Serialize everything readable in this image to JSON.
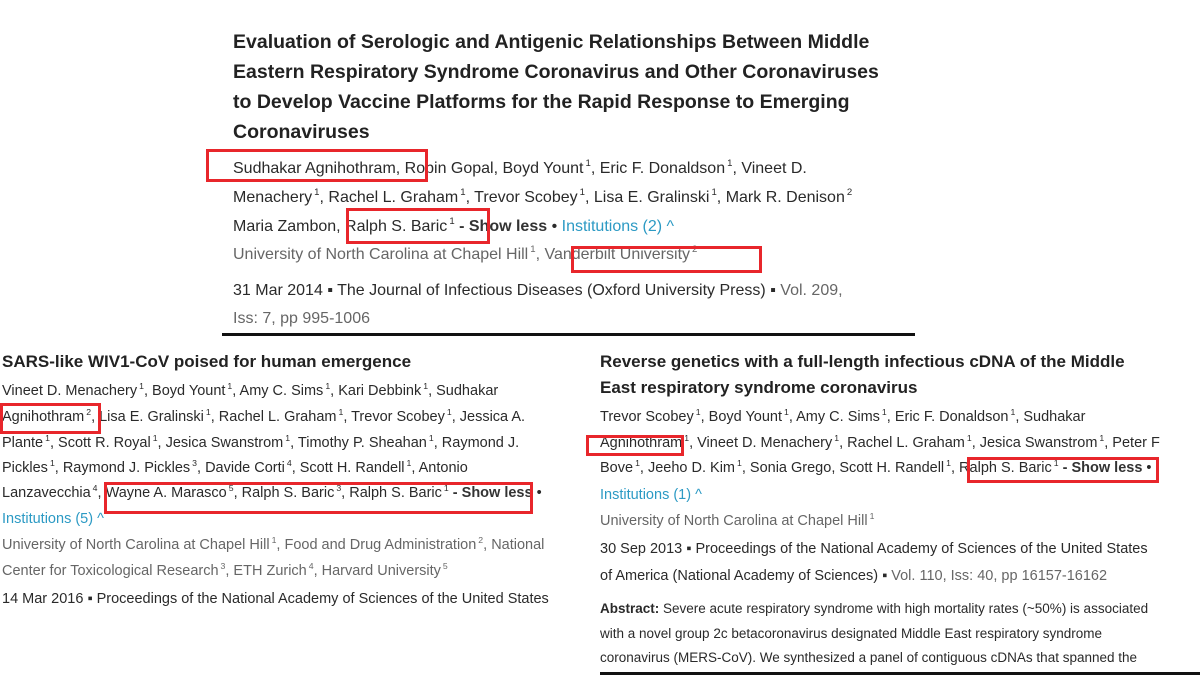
{
  "highlight_color": "#e8262b",
  "link_color": "#2c9ac4",
  "papers": [
    {
      "lines": [
        {
          "cls": "tA",
          "segs": [
            {
              "t": "Evaluation of Serologic and Antigenic Relationships Between Middle"
            }
          ]
        },
        {
          "cls": "tA",
          "segs": [
            {
              "t": "Eastern Respiratory Syndrome Coronavirus and Other Coronaviruses"
            }
          ]
        },
        {
          "cls": "tA",
          "segs": [
            {
              "t": "to Develop Vaccine Platforms for the Rapid Response to Emerging"
            }
          ]
        },
        {
          "cls": "tA",
          "segs": [
            {
              "t": "Coronaviruses"
            }
          ]
        },
        {
          "cls": "pa",
          "segs": [
            {
              "t": "Sudhakar Agnihothram, Robin Gopal, Boyd Yount"
            },
            {
              "s": "1"
            },
            {
              "t": ", Eric F. Donaldson"
            },
            {
              "s": "1"
            },
            {
              "t": ", Vineet D."
            }
          ]
        },
        {
          "cls": "pa",
          "segs": [
            {
              "t": "Menachery"
            },
            {
              "s": "1"
            },
            {
              "t": ", Rachel L. Graham"
            },
            {
              "s": "1"
            },
            {
              "t": ", Trevor Scobey"
            },
            {
              "s": "1"
            },
            {
              "t": ", Lisa E. Gralinski"
            },
            {
              "s": "1"
            },
            {
              "t": ", Mark R. Denison"
            },
            {
              "s": "2"
            }
          ]
        },
        {
          "cls": "pa",
          "segs": [
            {
              "t": "Maria Zambon, Ralph S. Baric"
            },
            {
              "s": "1"
            },
            {
              "b": "  - Show less"
            },
            {
              "t": " • "
            },
            {
              "l": "Institutions (2) ^"
            }
          ]
        },
        {
          "cls": "pa inst",
          "segs": [
            {
              "t": "University of North Carolina at Chapel Hill"
            },
            {
              "s": "1"
            },
            {
              "t": ", Vanderbilt University"
            },
            {
              "s": "2"
            }
          ]
        },
        {
          "cls": "pa",
          "segs": [
            {
              "t": "31 Mar 2014 ▪ The Journal of Infectious Diseases (Oxford University Press) ▪ "
            },
            {
              "g": "Vol. 209,"
            }
          ]
        },
        {
          "cls": "pa",
          "segs": [
            {
              "g": "Iss: 7, pp 995-1006"
            }
          ]
        }
      ]
    },
    {
      "lines": [
        {
          "cls": "tB",
          "segs": [
            {
              "t": "SARS-like WIV1-CoV poised for human emergence"
            }
          ]
        },
        {
          "cls": "pb",
          "segs": [
            {
              "t": "Vineet D. Menachery"
            },
            {
              "s": "1"
            },
            {
              "t": ", Boyd Yount"
            },
            {
              "s": "1"
            },
            {
              "t": ", Amy C. Sims"
            },
            {
              "s": "1"
            },
            {
              "t": ", Kari Debbink"
            },
            {
              "s": "1"
            },
            {
              "t": ", Sudhakar"
            }
          ]
        },
        {
          "cls": "pb",
          "segs": [
            {
              "t": "Agnihothram"
            },
            {
              "s": "2"
            },
            {
              "t": ", Lisa E. Gralinski"
            },
            {
              "s": "1"
            },
            {
              "t": ", Rachel L. Graham"
            },
            {
              "s": "1"
            },
            {
              "t": ", Trevor Scobey"
            },
            {
              "s": "1"
            },
            {
              "t": ", Jessica A."
            }
          ]
        },
        {
          "cls": "pb",
          "segs": [
            {
              "t": "Plante"
            },
            {
              "s": "1"
            },
            {
              "t": ", Scott R. Royal"
            },
            {
              "s": "1"
            },
            {
              "t": ", Jesica Swanstrom"
            },
            {
              "s": "1"
            },
            {
              "t": ", Timothy P. Sheahan"
            },
            {
              "s": "1"
            },
            {
              "t": ", Raymond J."
            }
          ]
        },
        {
          "cls": "pb",
          "segs": [
            {
              "t": "Pickles"
            },
            {
              "s": "1"
            },
            {
              "t": ", Raymond J. Pickles"
            },
            {
              "s": "3"
            },
            {
              "t": ", Davide Corti"
            },
            {
              "s": "4"
            },
            {
              "t": ", Scott H. Randell"
            },
            {
              "s": "1"
            },
            {
              "t": ", Antonio"
            }
          ]
        },
        {
          "cls": "pb",
          "segs": [
            {
              "t": "Lanzavecchia"
            },
            {
              "s": "4"
            },
            {
              "t": ", Wayne A. Marasco"
            },
            {
              "s": "5"
            },
            {
              "t": ", Ralph S. Baric"
            },
            {
              "s": "3"
            },
            {
              "t": ", Ralph S. Baric"
            },
            {
              "s": "1"
            },
            {
              "b": "  - Show less"
            },
            {
              "t": " •"
            }
          ]
        },
        {
          "cls": "pb",
          "segs": [
            {
              "l": "Institutions (5) ^"
            }
          ]
        },
        {
          "cls": "pb inst",
          "segs": [
            {
              "t": "University of North Carolina at Chapel Hill"
            },
            {
              "s": "1"
            },
            {
              "t": ", Food and Drug Administration"
            },
            {
              "s": "2"
            },
            {
              "t": ", National"
            }
          ]
        },
        {
          "cls": "pb inst",
          "segs": [
            {
              "t": "Center for Toxicological Research"
            },
            {
              "s": "3"
            },
            {
              "t": ", ETH Zurich"
            },
            {
              "s": "4"
            },
            {
              "t": ", Harvard University"
            },
            {
              "s": "5"
            }
          ]
        },
        {
          "cls": "pb",
          "segs": [
            {
              "t": "14 Mar 2016 ▪ Proceedings of the National Academy of Sciences of the United States"
            }
          ]
        }
      ]
    },
    {
      "lines": [
        {
          "cls": "tB",
          "segs": [
            {
              "t": "Reverse genetics with a full-length infectious cDNA of the Middle"
            }
          ]
        },
        {
          "cls": "tB",
          "segs": [
            {
              "t": "East respiratory syndrome coronavirus"
            }
          ]
        },
        {
          "cls": "pb",
          "segs": [
            {
              "t": "Trevor Scobey"
            },
            {
              "s": "1"
            },
            {
              "t": ", Boyd Yount"
            },
            {
              "s": "1"
            },
            {
              "t": ", Amy C. Sims"
            },
            {
              "s": "1"
            },
            {
              "t": ", Eric F. Donaldson"
            },
            {
              "s": "1"
            },
            {
              "t": ", Sudhakar"
            }
          ]
        },
        {
          "cls": "pb",
          "segs": [
            {
              "t": "Agnihothram"
            },
            {
              "s": "1"
            },
            {
              "t": ", Vineet D. Menachery"
            },
            {
              "s": "1"
            },
            {
              "t": ", Rachel L. Graham"
            },
            {
              "s": "1"
            },
            {
              "t": ", Jesica Swanstrom"
            },
            {
              "s": "1"
            },
            {
              "t": ", Peter F"
            }
          ]
        },
        {
          "cls": "pb",
          "segs": [
            {
              "t": "Bove"
            },
            {
              "s": "1"
            },
            {
              "t": ", Jeeho D. Kim"
            },
            {
              "s": "1"
            },
            {
              "t": ", Sonia Grego, Scott H. Randell"
            },
            {
              "s": "1"
            },
            {
              "t": ", Ralph S. Baric"
            },
            {
              "s": "1"
            },
            {
              "b": "  - Show less"
            },
            {
              "t": " •"
            }
          ]
        },
        {
          "cls": "pb",
          "segs": [
            {
              "l": "Institutions (1) ^"
            }
          ]
        },
        {
          "cls": "pb inst",
          "segs": [
            {
              "t": "University of North Carolina at Chapel Hill"
            },
            {
              "s": "1"
            }
          ]
        },
        {
          "cls": "pb",
          "segs": [
            {
              "t": "30 Sep 2013 ▪ Proceedings of the National Academy of Sciences of the United States"
            }
          ]
        },
        {
          "cls": "pb",
          "segs": [
            {
              "t": "of America (National Academy of Sciences) ▪ "
            },
            {
              "g": "Vol. 110, Iss: 40, pp 16157-16162"
            }
          ]
        },
        {
          "cls": "pb abs",
          "segs": [
            {
              "k": "Abstract:"
            },
            {
              "t": " Severe acute respiratory syndrome with high mortality rates (~50%) is associated"
            }
          ]
        },
        {
          "cls": "pb abs",
          "segs": [
            {
              "t": "with a novel group 2c betacoronavirus designated Middle East respiratory syndrome"
            }
          ]
        },
        {
          "cls": "pb abs",
          "segs": [
            {
              "t": "coronavirus (MERS-CoV). We synthesized a panel of contiguous cDNAs that spanned the"
            }
          ]
        }
      ]
    }
  ]
}
